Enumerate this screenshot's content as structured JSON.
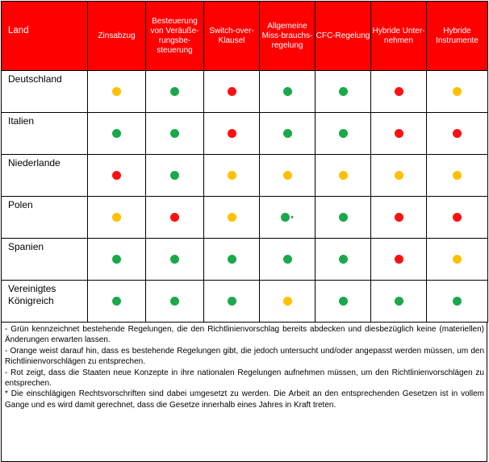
{
  "header": {
    "land": "Land",
    "columns": [
      "Zinsabzug",
      "Besteuerung von Veräuße-rungsbe-steuerung",
      "Switch-over-Klausel",
      "Allgemeine Miss-brauchs-regelung",
      "CFC-Regelung",
      "Hybride Unter-nehmen",
      "Hybride Instrumente"
    ]
  },
  "colors": {
    "green": "#1aa94a",
    "orange": "#ffc000",
    "red": "#ff1010",
    "header": "#ff0000"
  },
  "rows": [
    {
      "land": "Deutschland",
      "status": [
        "orange",
        "green",
        "red",
        "green",
        "green",
        "red",
        "orange"
      ]
    },
    {
      "land": "Italien",
      "status": [
        "green",
        "green",
        "red",
        "green",
        "green",
        "red",
        "red"
      ]
    },
    {
      "land": "Niederlande",
      "status": [
        "red",
        "green",
        "orange",
        "orange",
        "orange",
        "orange",
        "orange"
      ]
    },
    {
      "land": "Polen",
      "status": [
        "orange",
        "red",
        "orange",
        "green",
        "green",
        "red",
        "red"
      ],
      "footnote_col": 3,
      "footnote_mark": "*"
    },
    {
      "land": "Spanien",
      "status": [
        "green",
        "green",
        "green",
        "green",
        "green",
        "red",
        "orange"
      ]
    },
    {
      "land": "Vereinigtes Königreich",
      "status": [
        "green",
        "green",
        "green",
        "orange",
        "green",
        "green",
        "green"
      ]
    }
  ],
  "notes": [
    "- Grün kennzeichnet bestehende Regelungen, die den Richtlinienvorschlag bereits abdecken und diesbezüglich keine (materiellen) Änderungen erwarten lassen.",
    "- Orange weist darauf hin, dass es bestehende Regelungen gibt, die jedoch untersucht und/oder angepasst werden müssen, um den Richtlinienvorschlägen zu entsprechen.",
    "- Rot zeigt, dass die Staaten neue Konzepte in ihre nationalen Regelungen aufnehmen müssen, um den Richtlinienvorschlägen zu entsprechen.",
    "* Die einschlägigen Rechtsvorschriften sind dabei umgesetzt zu werden. Die Arbeit an den entsprechenden Gesetzen ist in vollem Gange und es wird damit gerechnet, dass die Gesetze innerhalb eines Jahres in Kraft treten."
  ]
}
